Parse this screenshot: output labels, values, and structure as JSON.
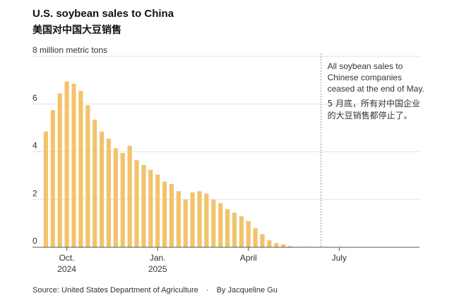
{
  "chart_data": {
    "type": "bar",
    "title": "U.S. soybean sales to China",
    "subtitle": "美国对中国大豆销售",
    "ylabel": "million metric tons",
    "ylim": [
      0,
      8
    ],
    "yticks": [
      0,
      2,
      4,
      6,
      8
    ],
    "x_ticks": [
      {
        "label": "Oct.",
        "sublabel": "2024",
        "index": 3
      },
      {
        "label": "Jan.",
        "sublabel": "2025",
        "index": 16
      },
      {
        "label": "April",
        "sublabel": "",
        "index": 29
      },
      {
        "label": "July",
        "sublabel": "",
        "index": 42
      }
    ],
    "bar_count": 54,
    "color": "#f2c36b",
    "values": [
      4.85,
      5.75,
      6.45,
      6.95,
      6.85,
      6.55,
      5.95,
      5.35,
      4.85,
      4.55,
      4.15,
      3.95,
      4.25,
      3.65,
      3.45,
      3.25,
      3.05,
      2.75,
      2.65,
      2.35,
      2.0,
      2.3,
      2.35,
      2.25,
      2.0,
      1.85,
      1.6,
      1.45,
      1.3,
      1.1,
      0.8,
      0.55,
      0.3,
      0.18,
      0.12,
      0.05,
      0.02,
      0.02,
      0.02,
      0.0
    ],
    "annotation": {
      "index": 39,
      "lines_en": [
        "All soybean sales to",
        "Chinese companies",
        "ceased at the end of May."
      ],
      "lines_cn": [
        "5 月底，所有对中国企业",
        "的大豆销售都停止了。"
      ]
    },
    "grid": true
  },
  "source": "Source: United States Department of Agriculture",
  "byline": "By Jacqueline Gu",
  "separator": "·"
}
